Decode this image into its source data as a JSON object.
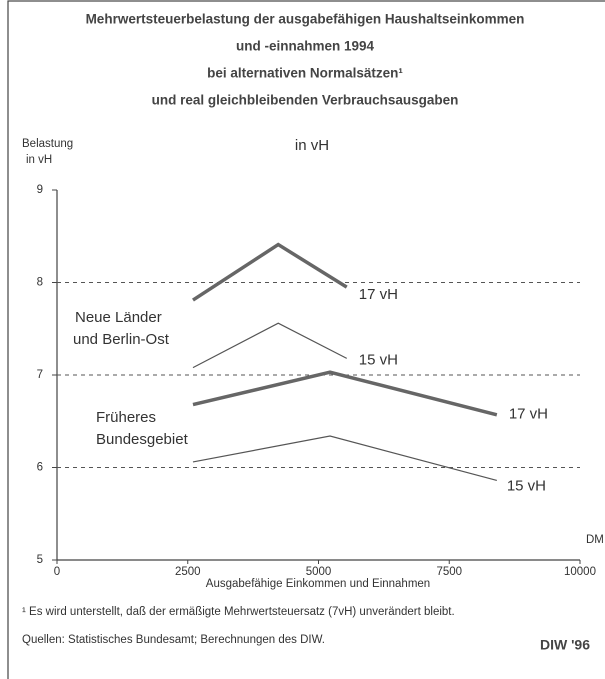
{
  "chart_data": {
    "type": "line",
    "title": [
      "Mehrwertsteuerbelastung der ausgabefähigen Haushaltseinkommen",
      "und -einnahmen 1994",
      "bei alternativen Normalsätzen¹",
      "und real gleichbleibenden Verbrauchsausgaben"
    ],
    "subtitle": "in vH",
    "y_label": [
      "Belastung",
      "in vH"
    ],
    "x_label": "Ausgabefähige Einkommen und Einnahmen",
    "x_unit": "DM",
    "xlim": [
      0,
      10000
    ],
    "xticks": [
      0,
      2500,
      5000,
      7500,
      10000
    ],
    "ylim": [
      5,
      9
    ],
    "yticks": [
      5,
      6,
      7,
      8,
      9
    ],
    "grid": true,
    "groups": [
      [
        "Neue Länder",
        "und Berlin-Ost"
      ],
      [
        "Früheres",
        "Bundesgebiet"
      ]
    ],
    "series": [
      {
        "name": "17 vH",
        "color": "#666666",
        "x": [
          2600,
          4230,
          5540
        ],
        "values": [
          7.81,
          8.41,
          7.95
        ]
      },
      {
        "name": "15 vH",
        "color": "#555555",
        "x": [
          2600,
          4230,
          5540
        ],
        "values": [
          7.08,
          7.56,
          7.18
        ]
      },
      {
        "name": "17 vH",
        "color": "#666666",
        "x": [
          2600,
          5220,
          8410
        ],
        "values": [
          6.68,
          7.03,
          6.57
        ]
      },
      {
        "name": "15 vH",
        "color": "#555555",
        "x": [
          2600,
          5220,
          8410
        ],
        "values": [
          6.06,
          6.34,
          5.86
        ]
      }
    ],
    "footnote": "¹ Es wird unterstellt, daß der ermäßigte Mehrwertsteuersatz (7vH) unverändert bleibt.",
    "source": "Quellen: Statistisches Bundesamt; Berechnungen des DIW.",
    "credit": "DIW '96"
  }
}
